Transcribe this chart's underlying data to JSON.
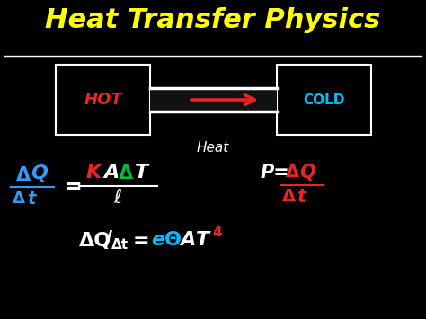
{
  "bg_color": "#000000",
  "title": "Heat Transfer Physics",
  "title_color": "#FFFF00",
  "white_color": "#FFFFFF",
  "red_color": "#EE2222",
  "blue_color": "#3399FF",
  "cyan_color": "#00BBFF",
  "green_color": "#00BB33",
  "hot_text": "HOT",
  "cold_text": "COLD",
  "heat_label": "Heat",
  "figw": 4.74,
  "figh": 3.55,
  "dpi": 100
}
